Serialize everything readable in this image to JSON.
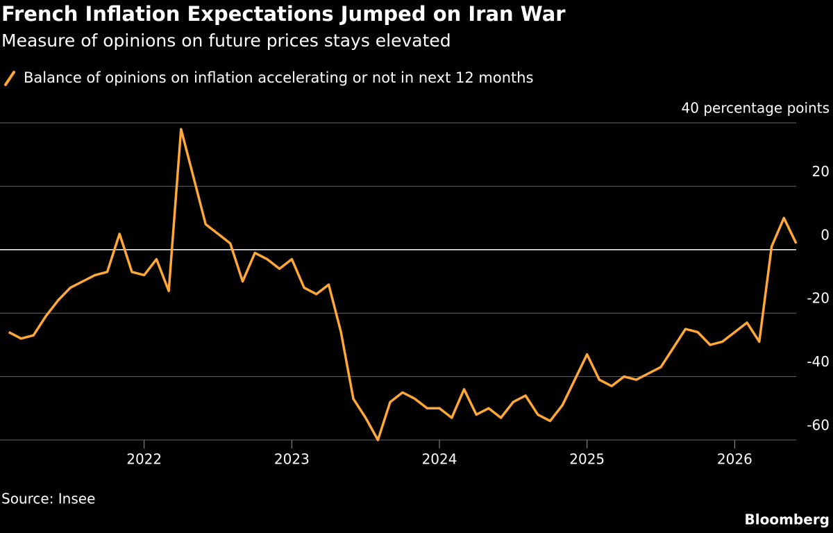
{
  "chart_data": {
    "type": "line",
    "title": "French Inflation Expectations Jumped on Iran War",
    "subtitle": "Measure of opinions on future prices stays elevated",
    "source": "Source: Insee",
    "brand": "Bloomberg",
    "x": [
      "2021-02",
      "2021-03",
      "2021-04",
      "2021-05",
      "2021-06",
      "2021-07",
      "2021-08",
      "2021-09",
      "2021-10",
      "2021-11",
      "2021-12",
      "2022-01",
      "2022-02",
      "2022-03",
      "2022-04",
      "2022-05",
      "2022-06",
      "2022-07",
      "2022-08",
      "2022-09",
      "2022-10",
      "2022-11",
      "2022-12",
      "2023-01",
      "2023-02",
      "2023-03",
      "2023-04",
      "2023-05",
      "2023-06",
      "2023-07",
      "2023-08",
      "2023-09",
      "2023-10",
      "2023-11",
      "2023-12",
      "2024-01",
      "2024-02",
      "2024-03",
      "2024-04",
      "2024-05",
      "2024-06",
      "2024-07",
      "2024-08",
      "2024-09",
      "2024-10",
      "2024-11",
      "2024-12",
      "2025-01",
      "2025-02",
      "2025-03",
      "2025-04",
      "2025-05",
      "2025-06",
      "2025-07",
      "2025-08",
      "2025-09",
      "2025-10",
      "2025-11",
      "2025-12",
      "2026-01",
      "2026-02",
      "2026-03",
      "2026-04",
      "2026-05",
      "2026-06"
    ],
    "series": [
      {
        "name": "Balance of opinions on inflation accelerating or not in next 12 months",
        "color": "#ffa737",
        "values": [
          -26,
          -28,
          -27,
          -21,
          -16,
          -12,
          -10,
          -8,
          -7,
          5,
          -7,
          -8,
          -3,
          -13,
          38,
          23,
          8,
          5,
          2,
          -10,
          -1,
          -3,
          -6,
          -3,
          -12,
          -14,
          -11,
          -26,
          -47,
          -53,
          -60,
          -48,
          -45,
          -47,
          -50,
          -50,
          -53,
          -44,
          -52,
          -50,
          -53,
          -48,
          -46,
          -52,
          -54,
          -49,
          -41,
          -33,
          -41,
          -43,
          -40,
          -41,
          -39,
          -37,
          -31,
          -25,
          -26,
          -30,
          -29,
          -26,
          -23,
          -29,
          1,
          10,
          2
        ]
      }
    ],
    "xlim": [
      "2021-01",
      "2026-06"
    ],
    "xticks": [
      {
        "value": "2022-01",
        "label": "2022"
      },
      {
        "value": "2023-01",
        "label": "2023"
      },
      {
        "value": "2024-01",
        "label": "2024"
      },
      {
        "value": "2025-01",
        "label": "2025"
      },
      {
        "value": "2026-01",
        "label": "2026"
      }
    ],
    "ylim": [
      -60,
      40
    ],
    "yticks": [
      -60,
      -40,
      -20,
      0,
      20,
      {
        "value": 40,
        "label": "40 percentage points"
      }
    ],
    "grid": true
  }
}
